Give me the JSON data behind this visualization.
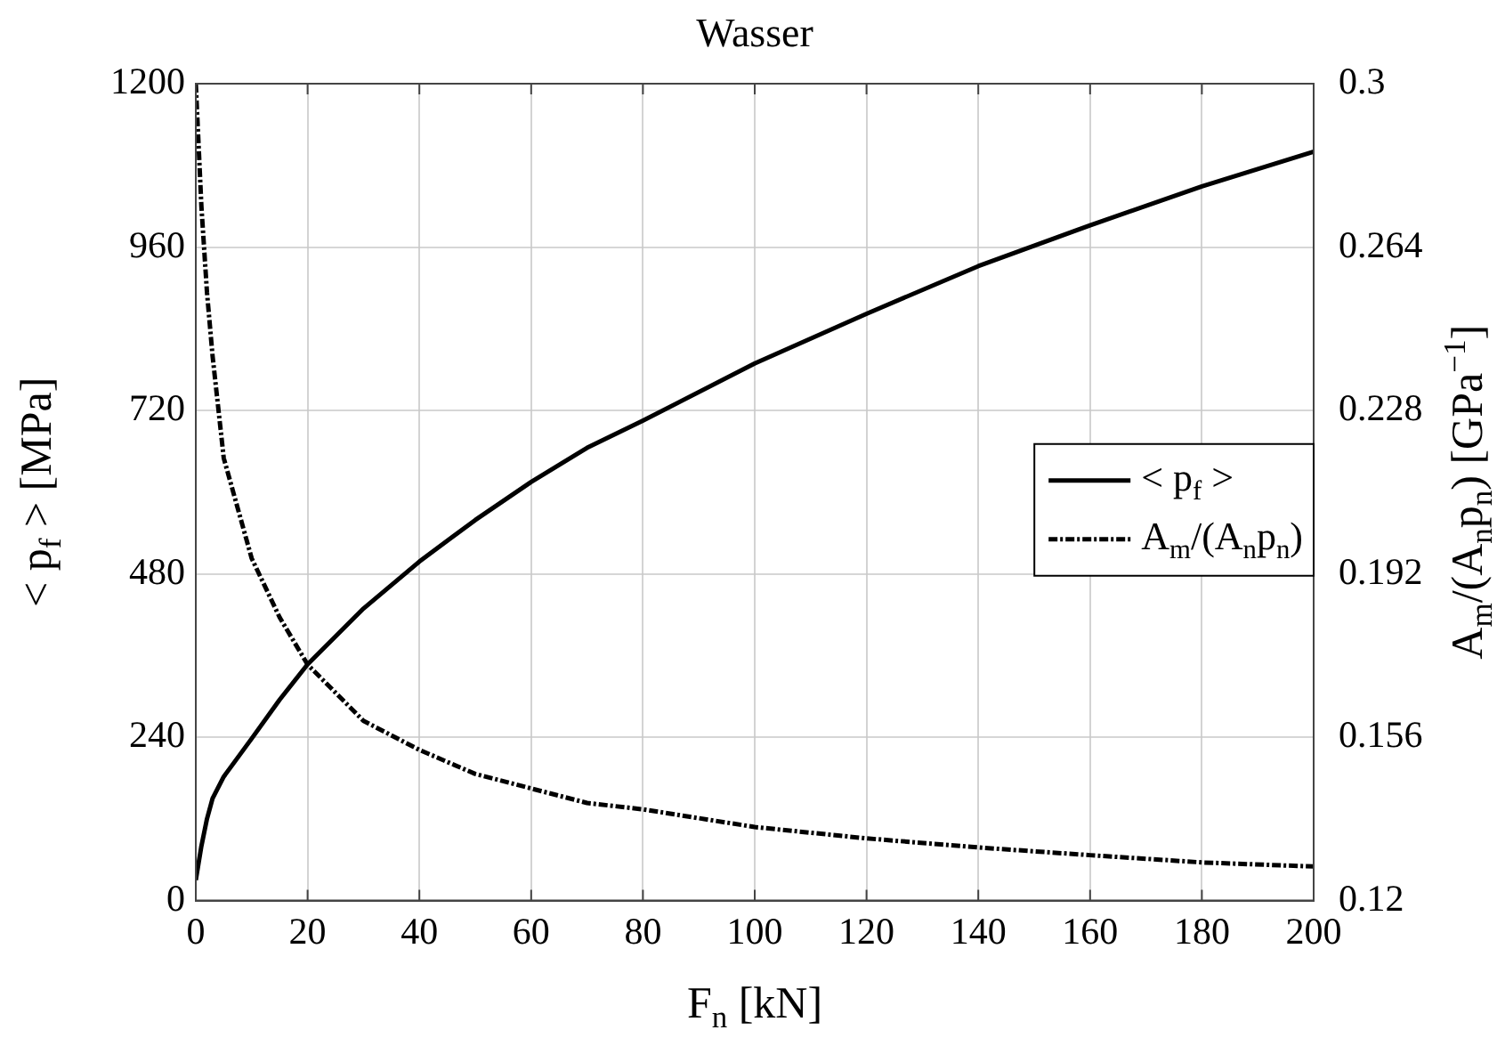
{
  "chart_data": {
    "type": "line",
    "title": "Wasser",
    "xlabel": "F$_{n}$ [kN]",
    "ylabel": "< p$_{f}$ > [MPa]",
    "y2label": "A$_{m}$/(A$_{n}$p$_{n}$) [GPa$^{−1}$]",
    "x": [
      0,
      1,
      2,
      3,
      5,
      10,
      15,
      20,
      30,
      40,
      50,
      60,
      70,
      80,
      100,
      120,
      140,
      160,
      180,
      200
    ],
    "series": [
      {
        "name": "< p$_{f}$ >",
        "color": "#000000",
        "line_style": "solid",
        "values": [
          30,
          80,
          120,
          150,
          182,
          238,
          295,
          347,
          429,
          498,
          559,
          615,
          665,
          705,
          789,
          862,
          932,
          992,
          1049,
          1100
        ]
      },
      {
        "name": "A$_{m}$/(A$_{n}$p$_{n}$)",
        "color": "#000000",
        "line_style": "dashed",
        "axis": "y2",
        "values": [
          0.3,
          0.273,
          0.254,
          0.24,
          0.2175,
          0.1954,
          0.1824,
          0.172,
          0.1596,
          0.1532,
          0.1479,
          0.1447,
          0.1415,
          0.1401,
          0.1362,
          0.1337,
          0.1317,
          0.13,
          0.1284,
          0.1275
        ]
      }
    ],
    "xlim": [
      0,
      200
    ],
    "xticks": [
      0,
      20,
      40,
      60,
      80,
      100,
      120,
      140,
      160,
      180,
      200
    ],
    "ylim": [
      0,
      1200
    ],
    "yticks": [
      0,
      240,
      480,
      720,
      960,
      1200
    ],
    "y2lim": [
      0.12,
      0.3
    ],
    "y2ticks": [
      0.12,
      0.156,
      0.192,
      0.228,
      0.264,
      0.3
    ],
    "grid": true,
    "legend": "right",
    "marker": "none"
  }
}
